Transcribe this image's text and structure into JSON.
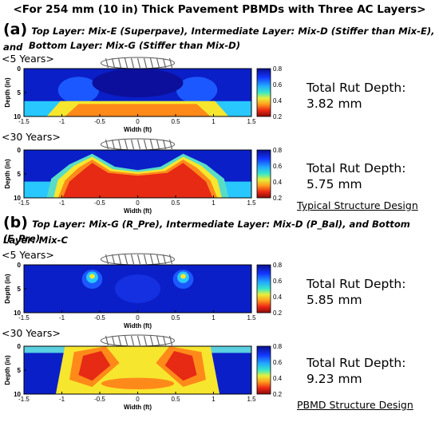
{
  "figure": {
    "title": "<For 254 mm (10 in) Thick Pavement PBMDs with Three AC Layers>",
    "sections": [
      {
        "label": "(a)",
        "description_lines": [
          "Top Layer: Mix-E (Superpave), Intermediate Layer: Mix-D (Stiffer than Mix-E), and",
          "Bottom Layer: Mix-G (Stiffer than Mix-D)"
        ],
        "design_label": "Typical Structure Design"
      },
      {
        "label": "(b)",
        "description_lines": [
          "Top Layer: Mix-G (R_Pre), Intermediate Layer: Mix-D (P_Bal), and Bottom Layer: Mix-C",
          "(F_Pre)"
        ],
        "design_label": "PBMD Structure Design"
      }
    ]
  },
  "chart_data": [
    {
      "type": "heatmap",
      "subtitle": "<5 Years>",
      "xlabel": "Width (ft)",
      "ylabel": "Depth (in)",
      "xlim": [
        -1.5,
        1.5
      ],
      "ylim": [
        0,
        10
      ],
      "x_ticks": [
        "-1.5",
        "-1",
        "-0.5",
        "0",
        "0.5",
        "1",
        "1.5"
      ],
      "y_ticks": [
        "0",
        "5",
        "10"
      ],
      "colorbar": {
        "range": [
          0.2,
          0.8
        ],
        "ticks": [
          "0.8",
          "0.6",
          "0.4",
          "0.2"
        ]
      },
      "annotation": {
        "label": "Total Rut Depth:",
        "value": "3.82 mm"
      }
    },
    {
      "type": "heatmap",
      "subtitle": "<30 Years>",
      "xlabel": "Width (ft)",
      "ylabel": "Depth (in)",
      "xlim": [
        -1.5,
        1.5
      ],
      "ylim": [
        0,
        10
      ],
      "x_ticks": [
        "-1.5",
        "-1",
        "-0.5",
        "0",
        "0.5",
        "1",
        "1.5"
      ],
      "y_ticks": [
        "0",
        "5",
        "10"
      ],
      "colorbar": {
        "range": [
          0.2,
          0.8
        ],
        "ticks": [
          "0.8",
          "0.6",
          "0.4",
          "0.2"
        ]
      },
      "annotation": {
        "label": "Total Rut Depth:",
        "value": "5.75 mm"
      }
    },
    {
      "type": "heatmap",
      "subtitle": "<5 Years>",
      "xlabel": "Width (ft)",
      "ylabel": "Depth (in)",
      "xlim": [
        -1.5,
        1.5
      ],
      "ylim": [
        0,
        10
      ],
      "x_ticks": [
        "-1.5",
        "-1",
        "-0.5",
        "0",
        "0.5",
        "1",
        "1.5"
      ],
      "y_ticks": [
        "0",
        "5",
        "10"
      ],
      "colorbar": {
        "range": [
          0.2,
          0.8
        ],
        "ticks": [
          "0.8",
          "0.6",
          "0.4",
          "0.2"
        ]
      },
      "annotation": {
        "label": "Total Rut Depth:",
        "value": "5.85 mm"
      }
    },
    {
      "type": "heatmap",
      "subtitle": "<30 Years>",
      "xlabel": "Width (ft)",
      "ylabel": "Depth (in)",
      "xlim": [
        -1.5,
        1.5
      ],
      "ylim": [
        0,
        10
      ],
      "x_ticks": [
        "-1.5",
        "-1",
        "-0.5",
        "0",
        "0.5",
        "1",
        "1.5"
      ],
      "y_ticks": [
        "0",
        "5",
        "10"
      ],
      "colorbar": {
        "range": [
          0.2,
          0.8
        ],
        "ticks": [
          "0.8",
          "0.6",
          "0.4",
          "0.2"
        ]
      },
      "annotation": {
        "label": "Total Rut Depth:",
        "value": "9.23 mm"
      }
    }
  ]
}
